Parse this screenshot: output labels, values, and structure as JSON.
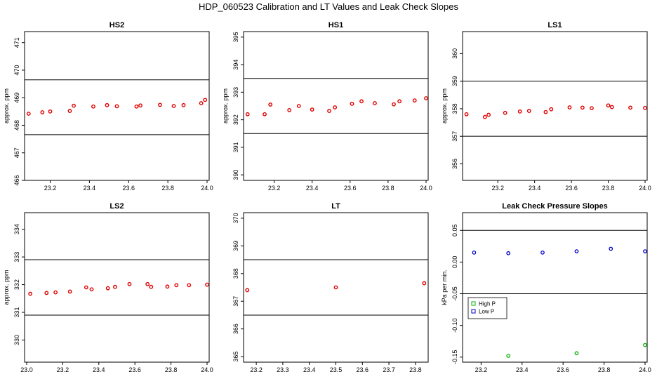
{
  "title": "HDP_060523  Calibration and LT Values and Leak Check Slopes",
  "colors": {
    "points": "#e00000",
    "lines": "#000000",
    "high_p": "#00b000",
    "low_p": "#0000cc"
  },
  "chart_data": [
    {
      "type": "scatter",
      "title": "HS2",
      "ylabel": "approx. ppm",
      "xlim": [
        23.08,
        24.0
      ],
      "ylim": [
        466,
        471.4
      ],
      "xticks": [
        "23.2",
        "23.4",
        "23.6",
        "23.8",
        "24.0"
      ],
      "yticks": [
        "466",
        "467",
        "468",
        "469",
        "470",
        "471"
      ],
      "hlines": [
        469.65,
        467.66
      ],
      "x": [
        23.09,
        23.16,
        23.2,
        23.3,
        23.32,
        23.42,
        23.49,
        23.54,
        23.64,
        23.66,
        23.76,
        23.83,
        23.88,
        23.97,
        23.99
      ],
      "y": [
        468.42,
        468.47,
        468.5,
        468.52,
        468.71,
        468.68,
        468.73,
        468.69,
        468.68,
        468.72,
        468.74,
        468.7,
        468.73,
        468.8,
        468.92
      ]
    },
    {
      "type": "scatter",
      "title": "HS1",
      "ylabel": "approx. ppm",
      "xlim": [
        23.05,
        24.0
      ],
      "ylim": [
        389.8,
        395.2
      ],
      "xticks": [
        "23.2",
        "23.4",
        "23.6",
        "23.8",
        "24.0"
      ],
      "yticks": [
        "390",
        "391",
        "392",
        "393",
        "394",
        "395"
      ],
      "hlines": [
        393.5,
        391.5
      ],
      "x": [
        23.06,
        23.15,
        23.18,
        23.28,
        23.33,
        23.4,
        23.49,
        23.52,
        23.61,
        23.66,
        23.73,
        23.83,
        23.86,
        23.94,
        24.0
      ],
      "y": [
        392.2,
        392.2,
        392.55,
        392.35,
        392.5,
        392.37,
        392.32,
        392.45,
        392.58,
        392.67,
        392.6,
        392.56,
        392.67,
        392.7,
        392.78
      ]
    },
    {
      "type": "scatter",
      "title": "LS1",
      "ylabel": "approx. ppm",
      "xlim": [
        23.02,
        24.0
      ],
      "ylim": [
        355.4,
        360.8
      ],
      "xticks": [
        "23.2",
        "23.4",
        "23.6",
        "23.8",
        "24.0"
      ],
      "yticks": [
        "356",
        "357",
        "358",
        "359",
        "360"
      ],
      "hlines": [
        359.0,
        357.0
      ],
      "x": [
        23.03,
        23.13,
        23.15,
        23.24,
        23.32,
        23.37,
        23.46,
        23.49,
        23.59,
        23.66,
        23.71,
        23.8,
        23.82,
        23.92,
        24.0
      ],
      "y": [
        357.8,
        357.7,
        357.78,
        357.85,
        357.9,
        357.92,
        357.88,
        357.98,
        358.05,
        358.04,
        358.02,
        358.12,
        358.06,
        358.04,
        358.03
      ]
    },
    {
      "type": "scatter",
      "title": "LS2",
      "ylabel": "approx. ppm",
      "xlim": [
        23.0,
        24.0
      ],
      "ylim": [
        329.2,
        334.6
      ],
      "xticks": [
        "23.0",
        "23.2",
        "23.4",
        "23.6",
        "23.8",
        "24.0"
      ],
      "yticks": [
        "330",
        "331",
        "332",
        "333",
        "334"
      ],
      "hlines": [
        332.9,
        330.9
      ],
      "x": [
        23.02,
        23.11,
        23.16,
        23.24,
        23.33,
        23.36,
        23.45,
        23.49,
        23.57,
        23.67,
        23.69,
        23.78,
        23.83,
        23.9,
        24.0
      ],
      "y": [
        331.67,
        331.7,
        331.72,
        331.75,
        331.9,
        331.83,
        331.87,
        331.92,
        332.02,
        332.02,
        331.92,
        331.93,
        331.98,
        331.98,
        332.0
      ]
    },
    {
      "type": "scatter",
      "title": "LT",
      "ylabel": "",
      "xlim": [
        23.16,
        23.84
      ],
      "ylim": [
        364.8,
        370.2
      ],
      "xticks": [
        "23.2",
        "23.3",
        "23.4",
        "23.5",
        "23.6",
        "23.7",
        "23.8"
      ],
      "yticks": [
        "365",
        "366",
        "367",
        "368",
        "369",
        "370"
      ],
      "hlines": [
        368.5,
        366.5
      ],
      "x": [
        23.166,
        23.5,
        23.833
      ],
      "y": [
        367.4,
        367.5,
        367.65
      ]
    },
    {
      "type": "scatter",
      "title": "Leak Check Pressure Slopes",
      "ylabel": "kPa per min.",
      "xlim": [
        23.12,
        24.0
      ],
      "ylim": [
        -0.158,
        0.078
      ],
      "xticks": [
        "23.2",
        "23.4",
        "23.6",
        "23.8",
        "24.0"
      ],
      "yticks": [
        "-0.15",
        "-0.10",
        "-0.05",
        "0.00",
        "0.05"
      ],
      "hlines": [
        0.05,
        -0.05
      ],
      "legend": {
        "placement": "left",
        "entries": [
          "High P",
          "Low P"
        ]
      },
      "series": [
        {
          "name": "High P",
          "x": [
            23.333,
            23.666,
            24.0
          ],
          "y": [
            -0.148,
            -0.144,
            -0.131
          ]
        },
        {
          "name": "Low P",
          "x": [
            23.166,
            23.333,
            23.5,
            23.666,
            23.833,
            24.0
          ],
          "y": [
            0.015,
            0.014,
            0.015,
            0.017,
            0.021,
            0.017
          ]
        }
      ]
    }
  ]
}
